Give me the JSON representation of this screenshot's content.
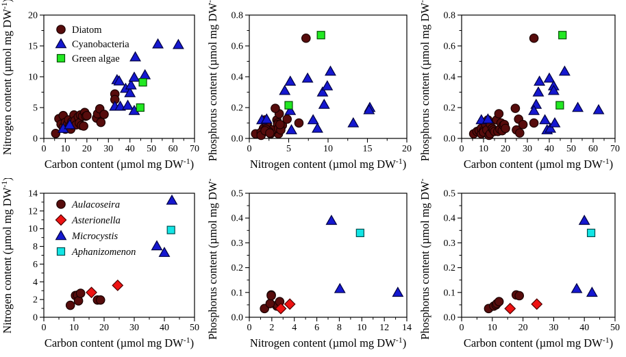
{
  "figure": {
    "background": "#ffffff",
    "frame_color": "#000000",
    "text_color": "#000000"
  },
  "datasets": {
    "algae_groups": {
      "legend_italic": false,
      "fields": [
        "C",
        "N",
        "P"
      ],
      "series": [
        {
          "name": "Diatom",
          "marker": "circle",
          "fill": "#570c0c",
          "stroke": "#180000",
          "points": [
            [
              5.5,
              0.8,
              0.03
            ],
            [
              7,
              3.2,
              0.045
            ],
            [
              8,
              2.3,
              0.05
            ],
            [
              9,
              3.7,
              0.03
            ],
            [
              9,
              1.8,
              0.065
            ],
            [
              10,
              2.6,
              0.05
            ],
            [
              10,
              1.5,
              0.04
            ],
            [
              11,
              2.3,
              0.09
            ],
            [
              11.5,
              3.0,
              0.055
            ],
            [
              12,
              2.0,
              0.12
            ],
            [
              12.5,
              1.5,
              0.02
            ],
            [
              13,
              2.7,
              0.03
            ],
            [
              13,
              2.2,
              0.095
            ],
            [
              14,
              3.8,
              0.065
            ],
            [
              14.5,
              2.9,
              0.055
            ],
            [
              15,
              2.2,
              0.045
            ],
            [
              16,
              3.5,
              0.12
            ],
            [
              16.5,
              2.5,
              0.045
            ],
            [
              17,
              3.8,
              0.16
            ],
            [
              17.5,
              2.1,
              0.06
            ],
            [
              18,
              3.6,
              0.1
            ],
            [
              18.5,
              2.0,
              0.05
            ],
            [
              19,
              4.2,
              0.085
            ],
            [
              19.5,
              3.6,
              0.09
            ],
            [
              20,
              3.7,
              0.065
            ],
            [
              24.5,
              3.3,
              0.195
            ],
            [
              25,
              4.0,
              0.055
            ],
            [
              26,
              4.8,
              0.125
            ],
            [
              26.5,
              2.6,
              0.035
            ],
            [
              28,
              3.9,
              0.09
            ],
            [
              33,
              7.2,
              0.65
            ],
            [
              33,
              6.3,
              0.1
            ]
          ]
        },
        {
          "name": "Cyanobacteria",
          "marker": "triangle",
          "fill": "#1518d0",
          "stroke": "#000040",
          "points": [
            [
              9,
              1.6,
              0.12
            ],
            [
              12,
              2.2,
              0.125
            ],
            [
              34,
              9.5,
              0.22
            ],
            [
              35,
              9.3,
              0.3
            ],
            [
              33,
              5.2,
              0.18
            ],
            [
              35.5,
              5.2,
              0.37
            ],
            [
              39,
              5.35,
              0.055
            ],
            [
              38,
              8.1,
              0.12
            ],
            [
              40,
              7.4,
              0.39
            ],
            [
              40.5,
              8.65,
              0.065
            ],
            [
              42,
              9.9,
              0.34
            ],
            [
              42.5,
              13.2,
              0.1
            ],
            [
              42,
              4.5,
              0.31
            ],
            [
              47,
              10.3,
              0.435
            ],
            [
              53,
              15.3,
              0.2
            ],
            [
              62.5,
              15.2,
              0.185
            ]
          ]
        },
        {
          "name": "Green algae",
          "marker": "square",
          "fill": "#22e822",
          "stroke": "#034d03",
          "points": [
            [
              46,
              9.1,
              0.67
            ],
            [
              44.8,
              5.0,
              0.215
            ]
          ]
        }
      ]
    },
    "species": {
      "legend_italic": true,
      "fields": [
        "C",
        "N",
        "P"
      ],
      "series": [
        {
          "name": "Aulacoseira",
          "marker": "circle",
          "fill": "#570c0c",
          "stroke": "#180000",
          "points": [
            [
              8.8,
              1.35,
              0.035
            ],
            [
              10.5,
              2.45,
              0.045
            ],
            [
              11.2,
              2.5,
              0.05
            ],
            [
              11.5,
              1.85,
              0.055
            ],
            [
              12.2,
              2.7,
              0.063
            ],
            [
              17.8,
              1.95,
              0.09
            ],
            [
              18.8,
              1.95,
              0.087
            ]
          ]
        },
        {
          "name": "Asterionella",
          "marker": "diamond",
          "fill": "#ee1212",
          "stroke": "#4d0000",
          "points": [
            [
              15.8,
              2.8,
              0.035
            ],
            [
              24.5,
              3.6,
              0.053
            ]
          ]
        },
        {
          "name": "Microcystis",
          "marker": "triangle",
          "fill": "#1518d0",
          "stroke": "#000040",
          "points": [
            [
              37.5,
              8.05,
              0.115
            ],
            [
              40,
              7.3,
              0.39
            ],
            [
              42.5,
              13.2,
              0.1
            ]
          ]
        },
        {
          "name": "Aphanizomenon",
          "marker": "square",
          "fill": "#12e5e5",
          "stroke": "#024d4d",
          "points": [
            [
              42.2,
              9.85,
              0.34
            ]
          ]
        }
      ]
    }
  },
  "chart_data": [
    {
      "type": "scatter",
      "panel": "top-left",
      "dataset": "algae_groups",
      "x_field": "C",
      "y_field": "N",
      "xlabel": "Carbon content (µmol mg DW⁻¹)",
      "ylabel": "Nitrogen content (µmol mg DW⁻¹)",
      "xlim": [
        0,
        70
      ],
      "ylim": [
        0,
        20
      ],
      "xticks": [
        "0",
        "10",
        "20",
        "30",
        "40",
        "50",
        "60",
        "70"
      ],
      "yticks": [
        "0",
        "5",
        "10",
        "15",
        "20"
      ],
      "grid": false,
      "legend": {
        "show": true,
        "position": "top-left"
      }
    },
    {
      "type": "scatter",
      "panel": "top-middle",
      "dataset": "algae_groups",
      "x_field": "N",
      "y_field": "P",
      "xlabel": "Nitrogen content (µmol mg DW⁻¹)",
      "ylabel": "Phosphorus content (µmol mg DW⁻¹)",
      "xlim": [
        0,
        20
      ],
      "ylim": [
        0,
        0.8
      ],
      "xticks": [
        "0",
        "5",
        "10",
        "15",
        "20"
      ],
      "yticks": [
        "0.0",
        "0.2",
        "0.4",
        "0.6",
        "0.8"
      ],
      "grid": false,
      "legend": {
        "show": false
      }
    },
    {
      "type": "scatter",
      "panel": "top-right",
      "dataset": "algae_groups",
      "x_field": "C",
      "y_field": "P",
      "xlabel": "Carbon content (µmol mg DW⁻¹)",
      "ylabel": "Phosphorus content (µmol mg DW⁻¹)",
      "xlim": [
        0,
        70
      ],
      "ylim": [
        0,
        0.8
      ],
      "xticks": [
        "0",
        "10",
        "20",
        "30",
        "40",
        "50",
        "60",
        "70"
      ],
      "yticks": [
        "0.0",
        "0.2",
        "0.4",
        "0.6",
        "0.8"
      ],
      "grid": false,
      "legend": {
        "show": false
      }
    },
    {
      "type": "scatter",
      "panel": "bottom-left",
      "dataset": "species",
      "x_field": "C",
      "y_field": "N",
      "xlabel": "Carbon content (µmol mg DW⁻¹)",
      "ylabel": "Nitrogen content (µmol mg DW⁻¹)",
      "xlim": [
        0,
        50
      ],
      "ylim": [
        0,
        14
      ],
      "xticks": [
        "0",
        "10",
        "20",
        "30",
        "40",
        "50"
      ],
      "yticks": [
        "0",
        "2",
        "4",
        "6",
        "8",
        "10",
        "12",
        "14"
      ],
      "grid": false,
      "legend": {
        "show": true,
        "position": "top-left"
      }
    },
    {
      "type": "scatter",
      "panel": "bottom-middle",
      "dataset": "species",
      "x_field": "N",
      "y_field": "P",
      "xlabel": "Nitrogen content (µmol mg DW⁻¹)",
      "ylabel": "Phosphorus content (µmol mg DW⁻¹)",
      "xlim": [
        0,
        14
      ],
      "ylim": [
        0,
        0.5
      ],
      "xticks": [
        "0",
        "2",
        "4",
        "6",
        "8",
        "10",
        "12",
        "14"
      ],
      "yticks": [
        "0.0",
        "0.1",
        "0.2",
        "0.3",
        "0.4",
        "0.5"
      ],
      "grid": false,
      "legend": {
        "show": false
      }
    },
    {
      "type": "scatter",
      "panel": "bottom-right",
      "dataset": "species",
      "x_field": "C",
      "y_field": "P",
      "xlabel": "Carbon content (µmol mg DW⁻¹)",
      "ylabel": "Phosphorus content (µmol mg DW⁻¹)",
      "xlim": [
        0,
        50
      ],
      "ylim": [
        0,
        0.5
      ],
      "xticks": [
        "0",
        "10",
        "20",
        "30",
        "40",
        "50"
      ],
      "yticks": [
        "0.0",
        "0.1",
        "0.2",
        "0.3",
        "0.4",
        "0.5"
      ],
      "grid": false,
      "legend": {
        "show": false
      }
    }
  ]
}
